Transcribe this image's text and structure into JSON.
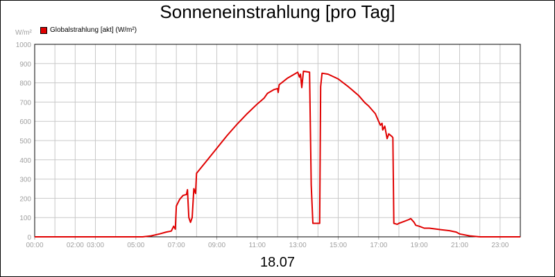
{
  "chart_data": {
    "type": "line",
    "title": "Sonneneinstrahlung [pro Tag]",
    "ylabel": "W/m²",
    "xlabel": "18.07",
    "ylim": [
      0,
      1000
    ],
    "xlim": [
      "00:00",
      "24:00"
    ],
    "grid": true,
    "legend_position": "top-left",
    "yticks": [
      0,
      100,
      200,
      300,
      400,
      500,
      600,
      700,
      800,
      900,
      1000
    ],
    "xtick_labels": [
      {
        "x": "00:00",
        "label": "00:00"
      },
      {
        "x": "02:00",
        "label": "02:00"
      },
      {
        "x": "03:00",
        "label": "03:00"
      },
      {
        "x": "05:00",
        "label": "05:00"
      },
      {
        "x": "07:00",
        "label": "07:00"
      },
      {
        "x": "09:00",
        "label": "09:00"
      },
      {
        "x": "11:00",
        "label": "11:00"
      },
      {
        "x": "13:00",
        "label": "13:00"
      },
      {
        "x": "15:00",
        "label": "15:00"
      },
      {
        "x": "17:00",
        "label": "17:00"
      },
      {
        "x": "19:00",
        "label": "19:00"
      },
      {
        "x": "21:00",
        "label": "21:00"
      },
      {
        "x": "23:00",
        "label": "23:00"
      }
    ],
    "series": [
      {
        "name": "Globalstrahlung [akt] (W/m²)",
        "color": "#e00000",
        "points": [
          [
            "00:00",
            0
          ],
          [
            "05:20",
            0
          ],
          [
            "05:45",
            5
          ],
          [
            "06:10",
            15
          ],
          [
            "06:30",
            25
          ],
          [
            "06:45",
            30
          ],
          [
            "06:52",
            55
          ],
          [
            "06:57",
            40
          ],
          [
            "07:00",
            160
          ],
          [
            "07:10",
            195
          ],
          [
            "07:20",
            215
          ],
          [
            "07:30",
            220
          ],
          [
            "07:33",
            245
          ],
          [
            "07:37",
            100
          ],
          [
            "07:42",
            75
          ],
          [
            "07:47",
            100
          ],
          [
            "07:52",
            250
          ],
          [
            "07:57",
            225
          ],
          [
            "08:00",
            330
          ],
          [
            "08:30",
            395
          ],
          [
            "09:00",
            460
          ],
          [
            "09:30",
            525
          ],
          [
            "10:00",
            585
          ],
          [
            "10:30",
            640
          ],
          [
            "11:00",
            690
          ],
          [
            "11:20",
            720
          ],
          [
            "11:30",
            745
          ],
          [
            "11:50",
            765
          ],
          [
            "12:00",
            770
          ],
          [
            "12:02",
            750
          ],
          [
            "12:05",
            790
          ],
          [
            "12:30",
            825
          ],
          [
            "13:00",
            855
          ],
          [
            "13:05",
            830
          ],
          [
            "13:08",
            845
          ],
          [
            "13:12",
            775
          ],
          [
            "13:17",
            860
          ],
          [
            "13:35",
            855
          ],
          [
            "13:40",
            270
          ],
          [
            "13:45",
            70
          ],
          [
            "14:05",
            70
          ],
          [
            "14:08",
            780
          ],
          [
            "14:12",
            850
          ],
          [
            "14:30",
            845
          ],
          [
            "15:00",
            820
          ],
          [
            "15:30",
            780
          ],
          [
            "16:00",
            735
          ],
          [
            "16:20",
            695
          ],
          [
            "16:30",
            680
          ],
          [
            "16:50",
            640
          ],
          [
            "17:00",
            600
          ],
          [
            "17:05",
            580
          ],
          [
            "17:10",
            590
          ],
          [
            "17:12",
            555
          ],
          [
            "17:18",
            575
          ],
          [
            "17:25",
            510
          ],
          [
            "17:30",
            535
          ],
          [
            "17:40",
            520
          ],
          [
            "17:42",
            515
          ],
          [
            "17:45",
            70
          ],
          [
            "17:55",
            65
          ],
          [
            "18:00",
            70
          ],
          [
            "18:15",
            80
          ],
          [
            "18:30",
            90
          ],
          [
            "18:35",
            95
          ],
          [
            "18:45",
            75
          ],
          [
            "18:50",
            60
          ],
          [
            "19:00",
            55
          ],
          [
            "19:15",
            45
          ],
          [
            "19:30",
            45
          ],
          [
            "20:00",
            38
          ],
          [
            "20:30",
            32
          ],
          [
            "20:50",
            25
          ],
          [
            "21:00",
            15
          ],
          [
            "21:30",
            5
          ],
          [
            "22:00",
            0
          ],
          [
            "24:00",
            0
          ]
        ]
      }
    ]
  }
}
